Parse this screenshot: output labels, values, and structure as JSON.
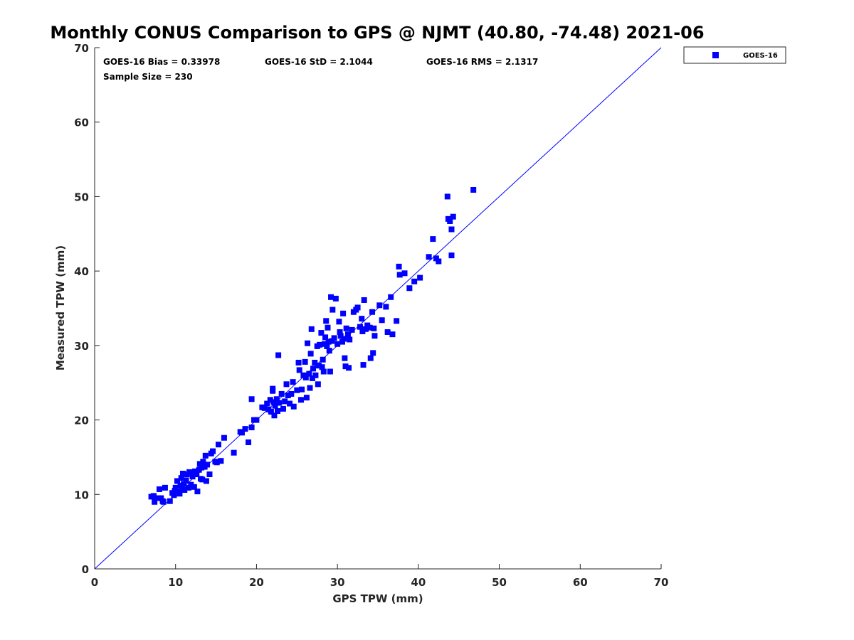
{
  "chart_data": {
    "type": "scatter",
    "title": "Monthly CONUS Comparison to GPS @ NJMT (40.80, -74.48) 2021-06",
    "xlabel": "GPS TPW (mm)",
    "ylabel": "Measured TPW (mm)",
    "xlim": [
      0,
      70
    ],
    "ylim": [
      0,
      70
    ],
    "xticks": [
      "0",
      "10",
      "20",
      "30",
      "40",
      "50",
      "60",
      "70"
    ],
    "yticks": [
      "0",
      "10",
      "20",
      "30",
      "40",
      "50",
      "60",
      "70"
    ],
    "grid": false,
    "legend_position": "outside-top-right",
    "reference_line": {
      "from": [
        0,
        0
      ],
      "to": [
        70,
        70
      ],
      "color": "#0000ff"
    },
    "stats": {
      "bias": "GOES-16 Bias = 0.33978",
      "std": "GOES-16 StD = 2.1044",
      "rms": "GOES-16 RMS = 2.1317",
      "sample": "Sample Size = 230"
    },
    "series": [
      {
        "name": "GOES-16",
        "color": "#0000ff",
        "marker": "square",
        "points": [
          [
            7.0,
            9.7
          ],
          [
            7.3,
            9.8
          ],
          [
            7.6,
            9.5
          ],
          [
            7.4,
            9.0
          ],
          [
            8.0,
            10.7
          ],
          [
            8.2,
            9.5
          ],
          [
            8.5,
            9.0
          ],
          [
            8.7,
            10.9
          ],
          [
            8.4,
            9.1
          ],
          [
            9.3,
            9.1
          ],
          [
            9.6,
            10.2
          ],
          [
            9.8,
            9.9
          ],
          [
            9.9,
            10.5
          ],
          [
            10.0,
            10.9
          ],
          [
            10.2,
            11.8
          ],
          [
            10.3,
            10.4
          ],
          [
            10.5,
            10.1
          ],
          [
            10.6,
            11.2
          ],
          [
            10.7,
            12.2
          ],
          [
            10.8,
            10.8
          ],
          [
            10.9,
            12.8
          ],
          [
            11.0,
            11.4
          ],
          [
            11.1,
            10.6
          ],
          [
            11.3,
            11.9
          ],
          [
            11.4,
            12.7
          ],
          [
            11.6,
            10.9
          ],
          [
            11.7,
            13.0
          ],
          [
            11.9,
            11.3
          ],
          [
            12.1,
            12.4
          ],
          [
            12.3,
            11.0
          ],
          [
            12.4,
            13.1
          ],
          [
            12.6,
            12.7
          ],
          [
            12.7,
            10.4
          ],
          [
            12.9,
            13.3
          ],
          [
            13.0,
            14.1
          ],
          [
            13.1,
            12.1
          ],
          [
            13.2,
            13.6
          ],
          [
            13.3,
            12.0
          ],
          [
            13.4,
            14.4
          ],
          [
            13.6,
            13.7
          ],
          [
            13.7,
            15.2
          ],
          [
            13.8,
            11.8
          ],
          [
            13.9,
            14.0
          ],
          [
            14.2,
            12.7
          ],
          [
            14.4,
            15.5
          ],
          [
            14.6,
            15.8
          ],
          [
            14.9,
            14.4
          ],
          [
            15.1,
            14.3
          ],
          [
            15.3,
            16.7
          ],
          [
            15.6,
            14.5
          ],
          [
            16.0,
            17.6
          ],
          [
            17.2,
            15.6
          ],
          [
            18.0,
            18.4
          ],
          [
            18.2,
            18.3
          ],
          [
            18.6,
            18.8
          ],
          [
            19.0,
            17.0
          ],
          [
            19.4,
            19.0
          ],
          [
            19.7,
            20.0
          ],
          [
            20.0,
            20.0
          ],
          [
            19.4,
            22.8
          ],
          [
            20.7,
            21.7
          ],
          [
            21.0,
            21.6
          ],
          [
            21.3,
            22.2
          ],
          [
            21.5,
            21.4
          ],
          [
            21.7,
            22.7
          ],
          [
            21.8,
            21.1
          ],
          [
            22.0,
            23.9
          ],
          [
            22.1,
            22.4
          ],
          [
            22.2,
            20.6
          ],
          [
            22.3,
            21.9
          ],
          [
            22.5,
            22.8
          ],
          [
            22.6,
            21.2
          ],
          [
            22.0,
            24.2
          ],
          [
            22.8,
            22.3
          ],
          [
            22.7,
            28.7
          ],
          [
            23.1,
            23.5
          ],
          [
            23.3,
            21.5
          ],
          [
            23.5,
            22.5
          ],
          [
            23.7,
            24.8
          ],
          [
            23.9,
            23.3
          ],
          [
            24.1,
            22.2
          ],
          [
            24.3,
            23.5
          ],
          [
            24.5,
            25.1
          ],
          [
            24.6,
            21.8
          ],
          [
            25.0,
            24.0
          ],
          [
            25.2,
            27.7
          ],
          [
            25.3,
            26.7
          ],
          [
            25.5,
            22.7
          ],
          [
            25.6,
            24.1
          ],
          [
            25.8,
            26.0
          ],
          [
            26.0,
            27.8
          ],
          [
            26.1,
            25.7
          ],
          [
            26.2,
            23.0
          ],
          [
            26.3,
            30.3
          ],
          [
            26.5,
            26.2
          ],
          [
            26.6,
            24.3
          ],
          [
            26.7,
            28.9
          ],
          [
            26.8,
            32.2
          ],
          [
            26.9,
            25.6
          ],
          [
            27.0,
            26.9
          ],
          [
            27.2,
            27.7
          ],
          [
            27.3,
            26.0
          ],
          [
            27.5,
            29.9
          ],
          [
            27.6,
            24.8
          ],
          [
            27.7,
            27.3
          ],
          [
            27.8,
            30.1
          ],
          [
            28.0,
            31.7
          ],
          [
            28.1,
            27.1
          ],
          [
            28.2,
            28.1
          ],
          [
            28.3,
            26.5
          ],
          [
            28.4,
            30.2
          ],
          [
            28.5,
            31.1
          ],
          [
            28.6,
            33.3
          ],
          [
            28.7,
            29.9
          ],
          [
            28.8,
            32.4
          ],
          [
            28.9,
            30.5
          ],
          [
            29.0,
            29.3
          ],
          [
            29.1,
            26.5
          ],
          [
            29.2,
            36.5
          ],
          [
            29.3,
            30.6
          ],
          [
            29.4,
            34.8
          ],
          [
            29.6,
            31.0
          ],
          [
            29.8,
            36.3
          ],
          [
            30.0,
            30.2
          ],
          [
            30.2,
            33.2
          ],
          [
            30.3,
            31.8
          ],
          [
            30.4,
            31.3
          ],
          [
            30.6,
            30.5
          ],
          [
            30.7,
            34.3
          ],
          [
            30.8,
            30.9
          ],
          [
            30.9,
            28.3
          ],
          [
            31.0,
            27.2
          ],
          [
            31.1,
            32.3
          ],
          [
            31.3,
            31.5
          ],
          [
            31.4,
            27.0
          ],
          [
            31.5,
            30.8
          ],
          [
            31.8,
            32.1
          ],
          [
            32.0,
            34.5
          ],
          [
            32.3,
            34.8
          ],
          [
            32.5,
            35.1
          ],
          [
            32.8,
            32.5
          ],
          [
            33.0,
            33.6
          ],
          [
            33.1,
            31.9
          ],
          [
            33.2,
            27.4
          ],
          [
            33.3,
            36.1
          ],
          [
            33.5,
            32.2
          ],
          [
            33.7,
            32.7
          ],
          [
            34.0,
            32.4
          ],
          [
            34.1,
            28.3
          ],
          [
            34.3,
            34.5
          ],
          [
            34.4,
            29.0
          ],
          [
            34.5,
            32.3
          ],
          [
            34.6,
            31.3
          ],
          [
            35.2,
            35.4
          ],
          [
            35.5,
            33.4
          ],
          [
            36.0,
            35.2
          ],
          [
            36.2,
            31.8
          ],
          [
            36.6,
            36.5
          ],
          [
            36.8,
            31.5
          ],
          [
            37.3,
            33.3
          ],
          [
            37.6,
            40.6
          ],
          [
            37.7,
            39.5
          ],
          [
            38.3,
            39.7
          ],
          [
            38.9,
            37.7
          ],
          [
            39.5,
            38.6
          ],
          [
            40.2,
            39.1
          ],
          [
            41.3,
            41.9
          ],
          [
            41.8,
            44.3
          ],
          [
            42.2,
            41.7
          ],
          [
            42.5,
            41.3
          ],
          [
            43.6,
            50.0
          ],
          [
            43.7,
            47.0
          ],
          [
            43.9,
            46.7
          ],
          [
            44.1,
            45.6
          ],
          [
            44.3,
            47.3
          ],
          [
            44.1,
            42.1
          ],
          [
            46.8,
            50.9
          ]
        ]
      }
    ]
  }
}
